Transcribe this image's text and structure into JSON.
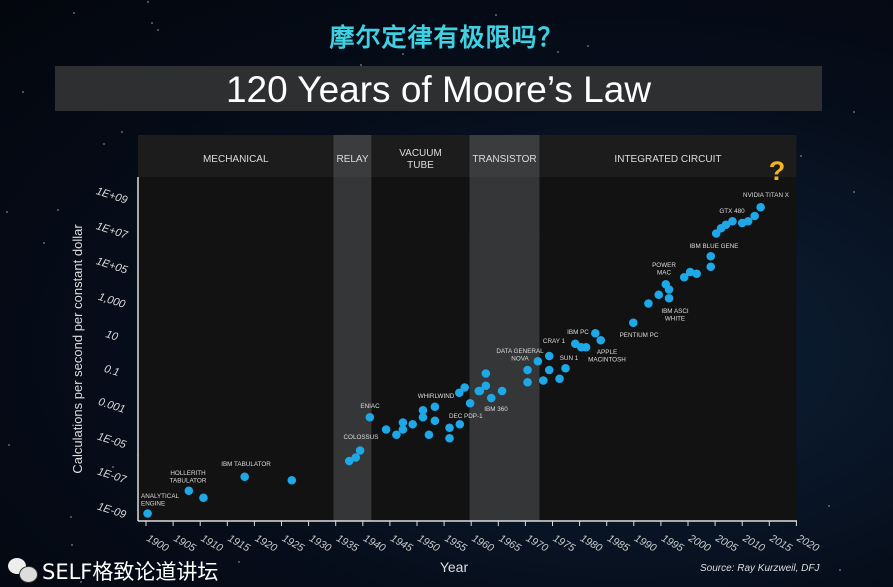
{
  "header": {
    "cn_title": "摩尔定律有极限吗？",
    "title": "120 Years of Moore’s Law"
  },
  "watermark": "SELF格致论道讲坛",
  "source": "Source: Ray Kurzweil, DFJ",
  "chart_data": {
    "type": "scatter",
    "title": "120 Years of Moore’s Law",
    "xlabel": "Year",
    "ylabel": "Calculations per second per constant dollar",
    "xlim": [
      1898.5,
      2020
    ],
    "ylim_log10": [
      -9.4,
      9.9
    ],
    "yscale": "log",
    "grid": false,
    "marker_color": "#1ea8e8",
    "x_ticks": [
      1900,
      1905,
      1910,
      1915,
      1920,
      1925,
      1930,
      1935,
      1940,
      1945,
      1950,
      1955,
      1960,
      1965,
      1970,
      1975,
      1980,
      1985,
      1990,
      1995,
      2000,
      2005,
      2010,
      2015,
      2020
    ],
    "x_tick_labels": [
      "1900",
      "1905",
      "1910",
      "1915",
      "1920",
      "1925",
      "1930",
      "1935",
      "1940",
      "1945",
      "1950",
      "1955",
      "1960",
      "1965",
      "1970",
      "1975",
      "1980",
      "1985",
      "1990",
      "1995",
      "2000",
      "2005",
      "2010",
      "2015",
      "2020"
    ],
    "y_ticks_log10": [
      9,
      7,
      5,
      3,
      1,
      -1,
      -3,
      -5,
      -7,
      -9
    ],
    "y_tick_labels": [
      "1E+09",
      "1E+07",
      "1E+05",
      "1,000",
      "10",
      "0.1",
      "0.001",
      "1E-05",
      "1E-07",
      "1E-09"
    ],
    "eras": [
      {
        "label": "MECHANICAL",
        "start": 1898.5,
        "end": 1934.6,
        "shade": "#121212"
      },
      {
        "label": "RELAY",
        "start": 1934.6,
        "end": 1941.6,
        "shade": "#343638"
      },
      {
        "label": "VACUUM TUBE",
        "start": 1941.6,
        "end": 1959.7,
        "shade": "#121212"
      },
      {
        "label": "TRANSISTOR",
        "start": 1959.7,
        "end": 1972.6,
        "shade": "#343638"
      },
      {
        "label": "INTEGRATED CIRCUIT",
        "start": 1972.6,
        "end": 2020,
        "shade": "#121212"
      }
    ],
    "points": [
      [
        1900.3,
        -9.2
      ],
      [
        1907.9,
        -7.9
      ],
      [
        1910.6,
        -8.3
      ],
      [
        1918.2,
        -7.1
      ],
      [
        1926.9,
        -7.3
      ],
      [
        1937.5,
        -6.2
      ],
      [
        1938.7,
        -6.0
      ],
      [
        1939.5,
        -5.6
      ],
      [
        1941.3,
        -3.7
      ],
      [
        1944.3,
        -4.4
      ],
      [
        1946.2,
        -4.7
      ],
      [
        1947.4,
        -4.0
      ],
      [
        1947.4,
        -4.4
      ],
      [
        1949.2,
        -4.1
      ],
      [
        1951.1,
        -3.3
      ],
      [
        1951.1,
        -3.7
      ],
      [
        1952.2,
        -4.7
      ],
      [
        1953.3,
        -3.1
      ],
      [
        1953.3,
        -3.9
      ],
      [
        1956.0,
        -4.3
      ],
      [
        1956.0,
        -4.9
      ],
      [
        1957.9,
        -4.1
      ],
      [
        1957.8,
        -2.3
      ],
      [
        1958.8,
        -2.0
      ],
      [
        1959.8,
        -2.9
      ],
      [
        1961.4,
        -2.2
      ],
      [
        1962.7,
        -1.2
      ],
      [
        1962.7,
        -1.9
      ],
      [
        1961.6,
        -2.2
      ],
      [
        1965.7,
        -2.2
      ],
      [
        1963.7,
        -2.6
      ],
      [
        1970.4,
        -1.0
      ],
      [
        1970.4,
        -1.7
      ],
      [
        1972.3,
        -0.5
      ],
      [
        1974.4,
        -0.2
      ],
      [
        1974.4,
        -1.0
      ],
      [
        1973.3,
        -1.6
      ],
      [
        1976.3,
        -1.5
      ],
      [
        1977.4,
        -0.9
      ],
      [
        1979.2,
        0.5
      ],
      [
        1980.3,
        0.3
      ],
      [
        1981.2,
        0.3
      ],
      [
        1982.9,
        1.1
      ],
      [
        1983.9,
        0.7
      ],
      [
        1989.9,
        1.7
      ],
      [
        1992.7,
        2.8
      ],
      [
        1994.6,
        3.3
      ],
      [
        1995.9,
        3.9
      ],
      [
        1996.5,
        3.6
      ],
      [
        1996.5,
        3.1
      ],
      [
        1999.3,
        4.3
      ],
      [
        2000.4,
        4.6
      ],
      [
        2001.6,
        4.5
      ],
      [
        2004.2,
        5.5
      ],
      [
        2004.2,
        4.9
      ],
      [
        2005.2,
        6.8
      ],
      [
        2006.1,
        7.1
      ],
      [
        2007.0,
        7.3
      ],
      [
        2008.2,
        7.5
      ],
      [
        2010.0,
        7.4
      ],
      [
        2011.1,
        7.5
      ],
      [
        2012.3,
        7.8
      ],
      [
        2013.4,
        8.3
      ]
    ],
    "annotations": [
      "ANALYTICAL|ENGINE",
      "HOLLERITH|TABULATOR",
      "IBM TABULATOR",
      "COLOSSUS",
      "ENIAC",
      "WHIRLWIND",
      "DEC PDP-1",
      "IBM 360",
      "DATA GENERAL|NOVA",
      "CRAY 1",
      "SUN 1",
      "IBM PC",
      "APPLE|MACINTOSH",
      "PENTIUM PC",
      "POWER|MAC",
      "IBM ASCI|WHITE",
      "IBM BLUE GENE",
      "GTX 480",
      "NVIDIA TITAN X"
    ],
    "future_marker": "?",
    "future_marker_color": "#f5b41e"
  }
}
